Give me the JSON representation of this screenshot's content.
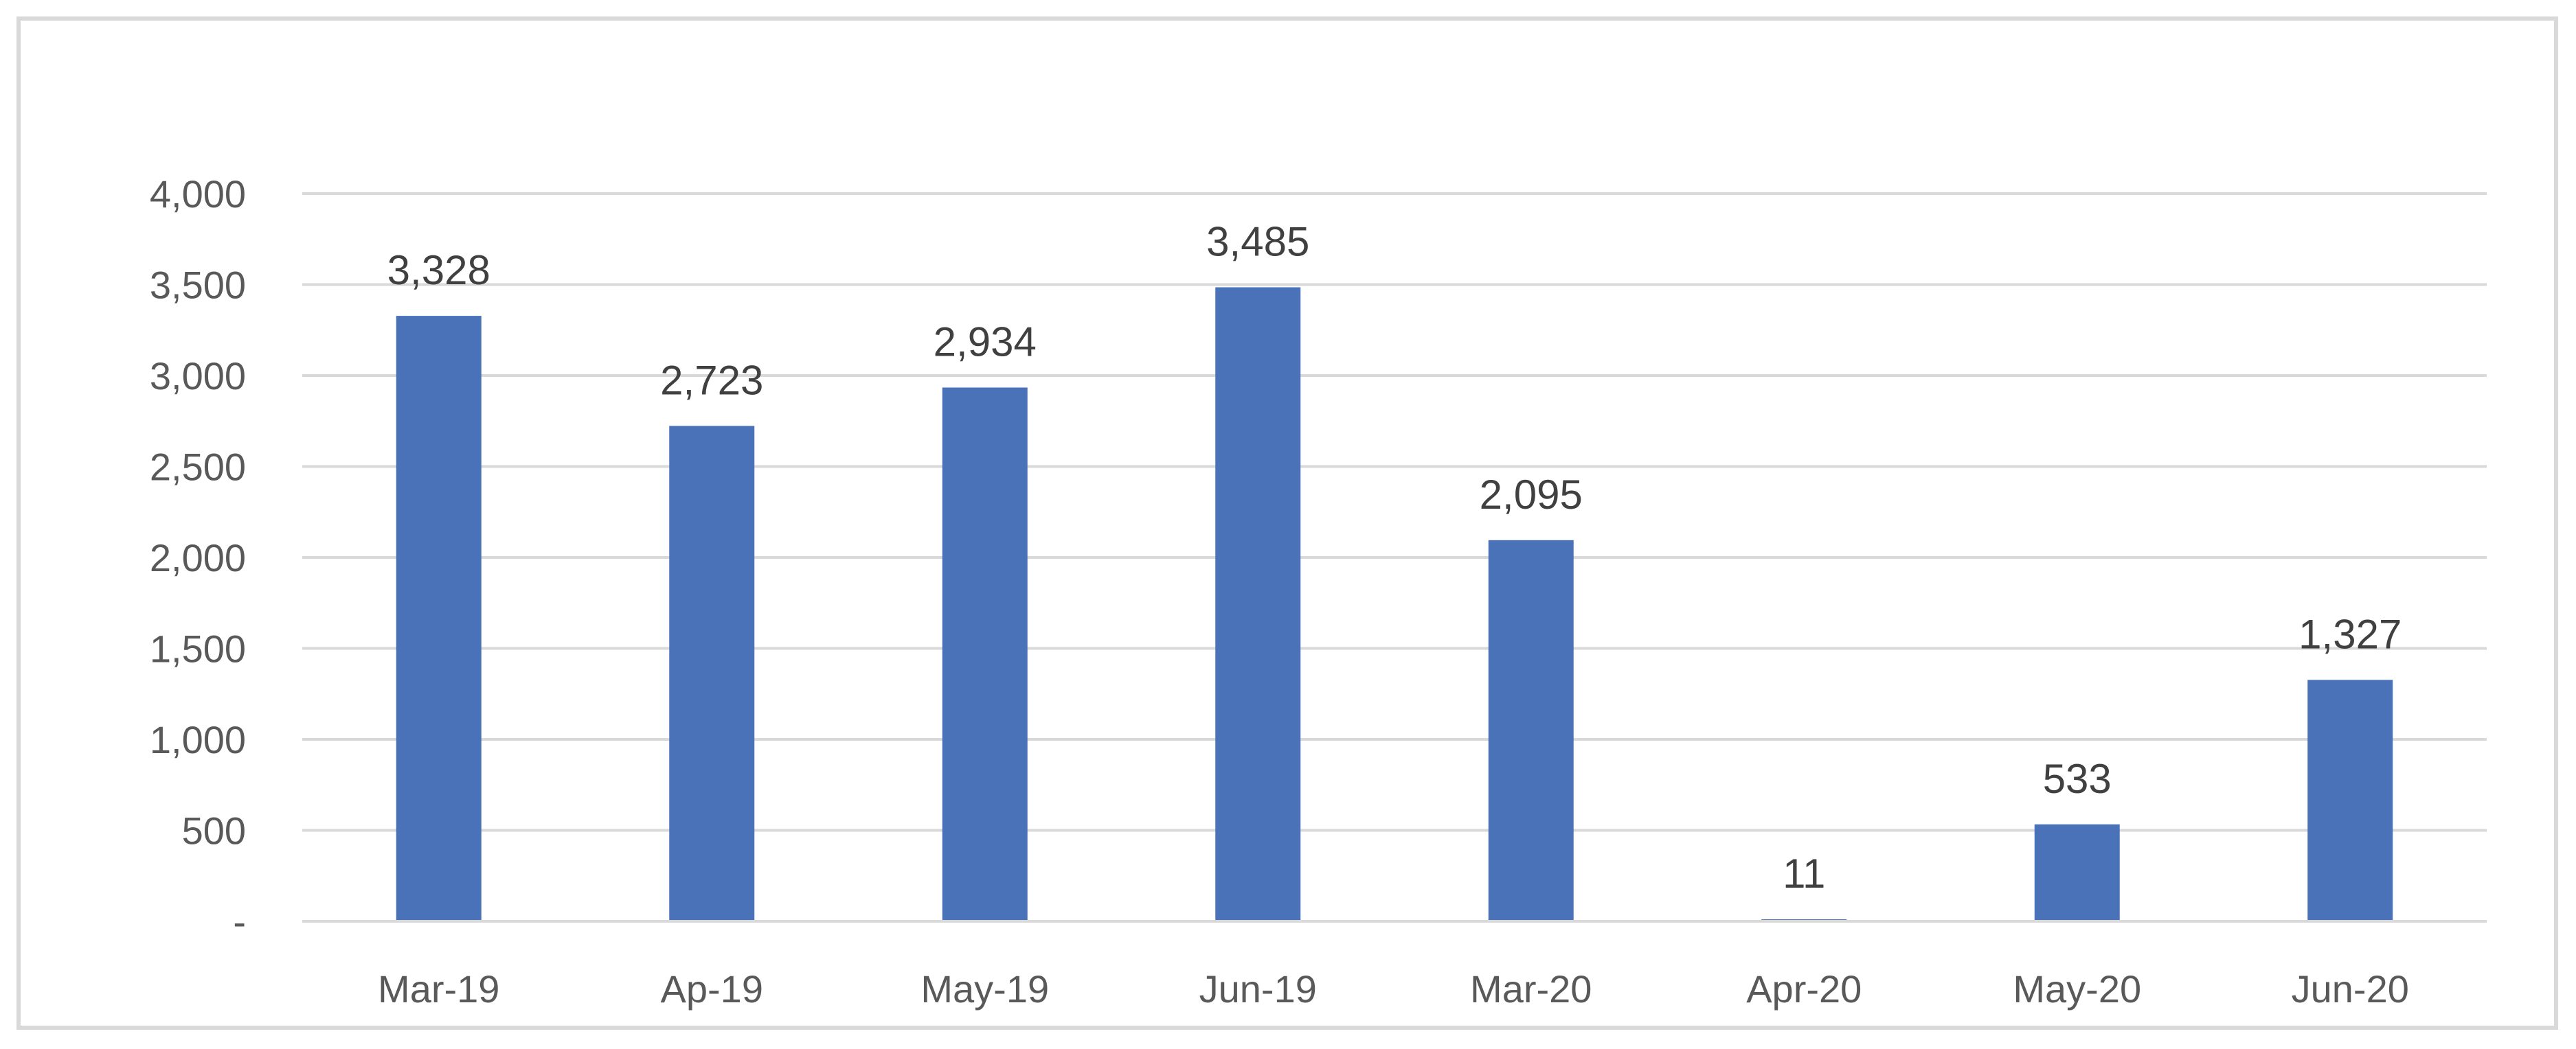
{
  "chart_data": {
    "type": "bar",
    "title": "",
    "xlabel": "",
    "ylabel": "",
    "categories": [
      "Mar-19",
      "Ap-19",
      "May-19",
      "Jun-19",
      "Mar-20",
      "Apr-20",
      "May-20",
      "Jun-20"
    ],
    "values": [
      3328,
      2723,
      2934,
      3485,
      2095,
      11,
      533,
      1327
    ],
    "data_labels": [
      "3,328",
      "2,723",
      "2,934",
      "3,485",
      "2,095",
      "11",
      "533",
      "1,327"
    ],
    "ylim": [
      0,
      4000
    ],
    "yticks": [
      0,
      500,
      1000,
      1500,
      2000,
      2500,
      3000,
      3500,
      4000
    ],
    "ytick_labels": [
      "-",
      "500",
      "1,000",
      "1,500",
      "2,000",
      "2,500",
      "3,000",
      "3,500",
      "4,000"
    ],
    "grid": true,
    "legend": "none",
    "colors": {
      "bar": "#4a72b8",
      "gridline": "#d9d9d9",
      "axis": "#d9d9d9",
      "tick_text": "#595959",
      "data_label_text": "#404040",
      "frame": "#d9d9d9"
    }
  }
}
